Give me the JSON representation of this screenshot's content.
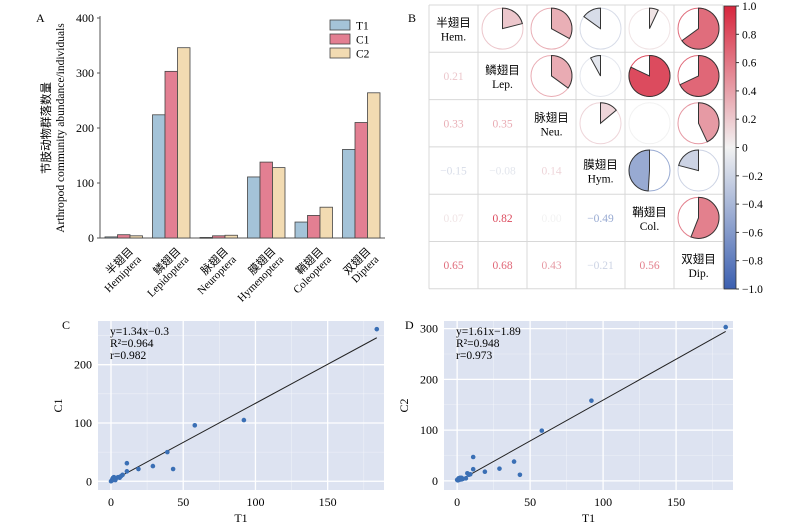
{
  "chart_data": [
    {
      "id": "A",
      "panel_label": "A",
      "type": "bar",
      "title": "",
      "ylabel_cn": "节肢动物群落数量",
      "ylabel": "Arthropod community abundance/individuals",
      "xlabel": "",
      "ylim": [
        0,
        400
      ],
      "yticks": [
        0,
        100,
        200,
        300,
        400
      ],
      "legend_position": "top-right",
      "categories": [
        {
          "cn": "半翅目",
          "en": "Hemiptera"
        },
        {
          "cn": "鳞翅目",
          "en": "Lepidoptera"
        },
        {
          "cn": "脉翅目",
          "en": "Neuroptera"
        },
        {
          "cn": "膜翅目",
          "en": "Hymenoptera"
        },
        {
          "cn": "鞘翅目",
          "en": "Coleoptera"
        },
        {
          "cn": "双翅目",
          "en": "Diptera"
        }
      ],
      "series": [
        {
          "name": "T1",
          "color": "#a4c3d8",
          "values": [
            2,
            224,
            1,
            111,
            29,
            161
          ]
        },
        {
          "name": "C1",
          "color": "#e37f92",
          "values": [
            6,
            303,
            4,
            138,
            41,
            210
          ]
        },
        {
          "name": "C2",
          "color": "#f2dbb2",
          "values": [
            4,
            346,
            5,
            128,
            56,
            264
          ]
        }
      ]
    },
    {
      "id": "B",
      "panel_label": "B",
      "type": "heatmap",
      "subtype": "correlogram-pie",
      "title": "",
      "variables": [
        {
          "cn": "半翅目",
          "abbr": "Hem."
        },
        {
          "cn": "鳞翅目",
          "abbr": "Lep."
        },
        {
          "cn": "脉翅目",
          "abbr": "Neu."
        },
        {
          "cn": "膜翅目",
          "abbr": "Hym."
        },
        {
          "cn": "鞘翅目",
          "abbr": "Col."
        },
        {
          "cn": "双翅目",
          "abbr": "Dip."
        }
      ],
      "matrix": [
        [
          1.0,
          0.21,
          0.33,
          -0.15,
          0.07,
          0.65
        ],
        [
          0.21,
          1.0,
          0.35,
          -0.08,
          0.82,
          0.68
        ],
        [
          0.33,
          0.35,
          1.0,
          0.14,
          0.0,
          0.43
        ],
        [
          -0.15,
          -0.08,
          0.14,
          1.0,
          -0.49,
          -0.21
        ],
        [
          0.07,
          0.82,
          0.0,
          -0.49,
          1.0,
          0.56
        ],
        [
          0.65,
          0.68,
          0.43,
          -0.21,
          0.56,
          1.0
        ]
      ],
      "lower_labels": [
        [
          "",
          "",
          "",
          "",
          "",
          ""
        ],
        [
          "0.21",
          "",
          "",
          "",
          "",
          ""
        ],
        [
          "0.33",
          "0.35",
          "",
          "",
          "",
          ""
        ],
        [
          "−0.15",
          "−0.08",
          "0.14",
          "",
          "",
          ""
        ],
        [
          "0.07",
          "0.82",
          "0.00",
          "−0.49",
          "",
          ""
        ],
        [
          "0.65",
          "0.68",
          "0.43",
          "−0.21",
          "0.56",
          ""
        ]
      ],
      "colorbar": {
        "range": [
          -1.0,
          1.0
        ],
        "ticks": [
          "1.0",
          "0.8",
          "0.6",
          "0.4",
          "0.2",
          "0",
          "−0.2",
          "−0.4",
          "−0.6",
          "−0.8",
          "−1.0"
        ],
        "color_pos": "#d7263d",
        "color_mid": "#f2f2f2",
        "color_neg": "#3b5fb0"
      }
    },
    {
      "id": "C",
      "panel_label": "C",
      "type": "scatter",
      "xlabel": "T1",
      "ylabel": "C1",
      "xlim": [
        -9,
        189
      ],
      "ylim": [
        -15,
        275
      ],
      "xticks": [
        "0",
        "50",
        "100",
        "150"
      ],
      "xtick_values": [
        0,
        50,
        100,
        150
      ],
      "yticks": [
        "0",
        "100",
        "200"
      ],
      "ytick_values": [
        0,
        100,
        200
      ],
      "grid": true,
      "annotation": [
        "y=1.34x−0.3",
        "R²=0.964",
        "r=0.982"
      ],
      "fit": {
        "slope": 1.34,
        "intercept": -0.3,
        "x_range": [
          0,
          184
        ]
      },
      "points": [
        [
          0,
          0
        ],
        [
          0.5,
          1
        ],
        [
          1,
          2
        ],
        [
          1,
          4
        ],
        [
          1.5,
          6
        ],
        [
          2,
          3
        ],
        [
          2,
          7
        ],
        [
          3,
          5
        ],
        [
          3,
          2
        ],
        [
          4,
          6
        ],
        [
          5,
          7
        ],
        [
          6,
          6
        ],
        [
          7,
          9
        ],
        [
          8,
          11
        ],
        [
          11,
          17
        ],
        [
          11,
          31
        ],
        [
          19,
          21
        ],
        [
          29,
          26
        ],
        [
          39,
          50
        ],
        [
          43,
          21
        ],
        [
          58,
          96
        ],
        [
          92,
          105
        ],
        [
          184,
          261
        ]
      ],
      "point_color": "#3a6fb5",
      "background": "#dde3f1"
    },
    {
      "id": "D",
      "panel_label": "D",
      "type": "scatter",
      "xlabel": "T1",
      "ylabel": "C2",
      "xlim": [
        -9,
        189
      ],
      "ylim": [
        -18,
        315
      ],
      "xticks": [
        "0",
        "50",
        "100",
        "150"
      ],
      "xtick_values": [
        0,
        50,
        100,
        150
      ],
      "yticks": [
        "0",
        "100",
        "200",
        "300"
      ],
      "ytick_values": [
        0,
        100,
        200,
        300
      ],
      "grid": true,
      "annotation": [
        "y=1.61x−1.89",
        "R²=0.948",
        "r=0.973"
      ],
      "fit": {
        "slope": 1.61,
        "intercept": -1.89,
        "x_range": [
          0,
          184
        ]
      },
      "points": [
        [
          0,
          2
        ],
        [
          0.5,
          1
        ],
        [
          1,
          3
        ],
        [
          1,
          5
        ],
        [
          1.5,
          2
        ],
        [
          2,
          4
        ],
        [
          2,
          6
        ],
        [
          3,
          3
        ],
        [
          3,
          6
        ],
        [
          4,
          4
        ],
        [
          6,
          5
        ],
        [
          7,
          15
        ],
        [
          8,
          12
        ],
        [
          9,
          13
        ],
        [
          11,
          23
        ],
        [
          11,
          47
        ],
        [
          19,
          18
        ],
        [
          29,
          24
        ],
        [
          39,
          38
        ],
        [
          43,
          12
        ],
        [
          58,
          99
        ],
        [
          92,
          158
        ],
        [
          184,
          303
        ]
      ],
      "point_color": "#3a6fb5",
      "background": "#dde3f1"
    }
  ]
}
